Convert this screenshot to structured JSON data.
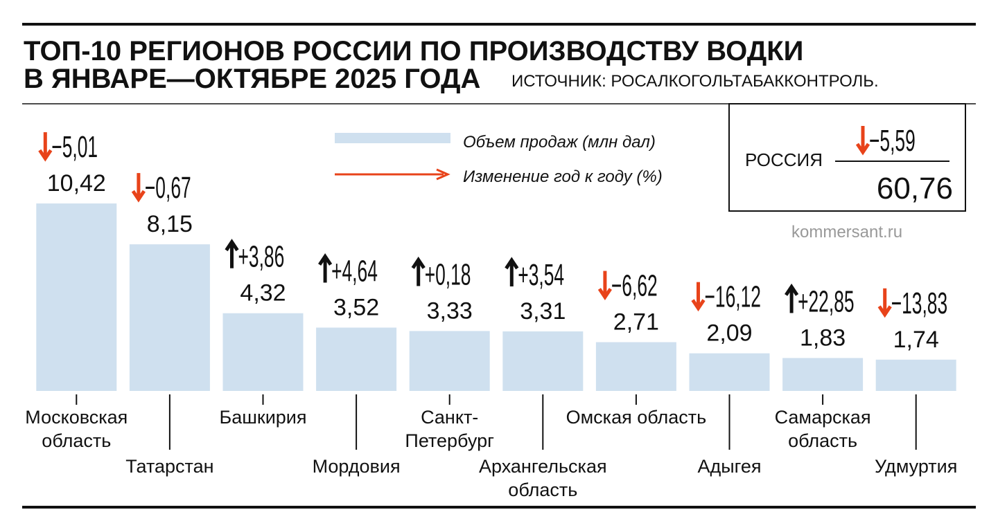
{
  "chart_data": {
    "type": "bar",
    "title": [
      "ТОП-10 РЕГИОНОВ РОССИИ ПО ПРОИЗВОДСТВУ ВОДКИ",
      "В ЯНВАРЕ—ОКТЯБРЕ 2025 ГОДА"
    ],
    "source": "ИСТОЧНИК: РОСАЛКОГОЛЬТАБАККОНТРОЛЬ.",
    "watermark": "kommersant.ru",
    "categories": [
      [
        "Московская",
        "область"
      ],
      [
        "Татарстан"
      ],
      [
        "Башкирия"
      ],
      [
        "Мордовия"
      ],
      [
        "Санкт-",
        "Петербург"
      ],
      [
        "Архангельская",
        "область"
      ],
      [
        "Омская область"
      ],
      [
        "Адыгея"
      ],
      [
        "Самарская",
        "область"
      ],
      [
        "Удмуртия"
      ]
    ],
    "series": [
      {
        "name": "Объем продаж (млн дал)",
        "color": "#cfe0ef",
        "values": [
          10.42,
          8.15,
          4.32,
          3.52,
          3.33,
          3.31,
          2.71,
          2.09,
          1.83,
          1.74
        ],
        "value_labels": [
          "10,42",
          "8,15",
          "4,32",
          "3,52",
          "3,33",
          "3,31",
          "2,71",
          "2,09",
          "1,83",
          "1,74"
        ]
      },
      {
        "name": "Изменение год к году (%)",
        "color": "#e8431a",
        "up_color": "#111111",
        "values": [
          -5.01,
          -0.67,
          3.86,
          4.64,
          0.18,
          3.54,
          -6.62,
          -16.12,
          22.85,
          -13.83
        ],
        "value_labels": [
          "−5,01",
          "−0,67",
          "+3,86",
          "+4,64",
          "+0,18",
          "+3,54",
          "−6,62",
          "−16,12",
          "+22,85",
          "−13,83"
        ]
      }
    ],
    "total": {
      "label": "РОССИЯ",
      "change": -5.59,
      "change_label": "−5,59",
      "value": 60.76,
      "value_label": "60,76"
    }
  }
}
